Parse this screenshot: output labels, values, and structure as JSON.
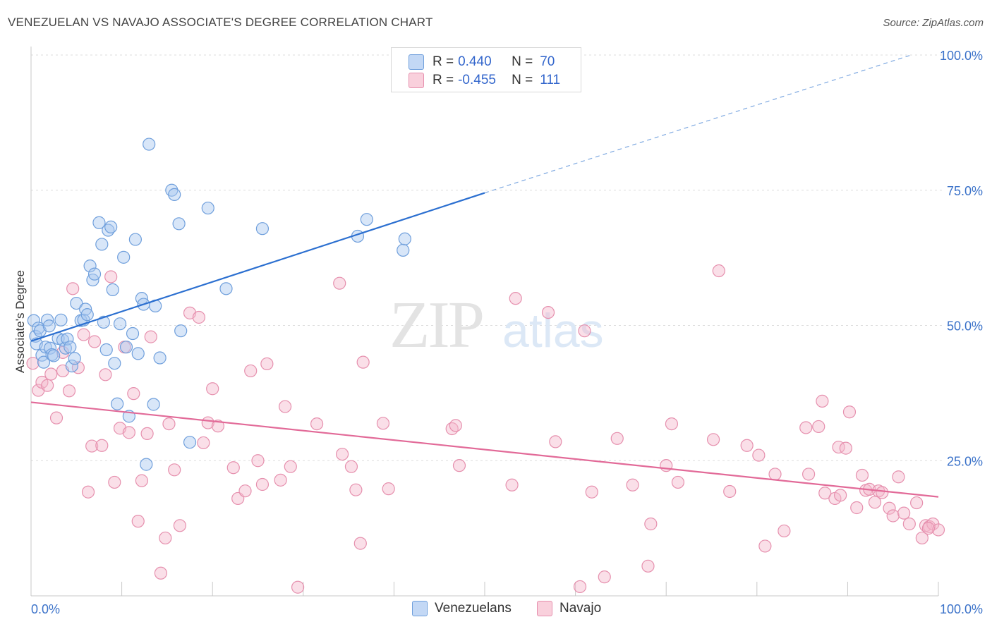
{
  "title": "VENEZUELAN VS NAVAJO ASSOCIATE'S DEGREE CORRELATION CHART",
  "source": "Source: ZipAtlas.com",
  "watermark": {
    "zip": "ZIP",
    "atlas": "atlas"
  },
  "legend": {
    "rows": [
      {
        "r_label": "R =",
        "r_value": "0.440",
        "n_label": "N =",
        "n_value": "70"
      },
      {
        "r_label": "R =",
        "r_value": "-0.455",
        "n_label": "N =",
        "n_value": "111"
      }
    ]
  },
  "bottom_legend": [
    "Venezuelans",
    "Navajo"
  ],
  "colors": {
    "blue_fill": "#a9c7f0",
    "blue_stroke": "#6f9fdc",
    "blue_line": "#2b6fd0",
    "pink_fill": "#f5b8cb",
    "pink_stroke": "#e690ae",
    "pink_line": "#e26a98",
    "tick_label": "#3b72c9",
    "grid": "#dddddd"
  },
  "chart_data": {
    "type": "scatter",
    "title": "VENEZUELAN VS NAVAJO ASSOCIATE'S DEGREE CORRELATION CHART",
    "xlabel": "",
    "ylabel": "Associate's Degree",
    "xlim": [
      0,
      100
    ],
    "ylim": [
      0,
      100
    ],
    "x_tick_labels": [
      "0.0%",
      "100.0%"
    ],
    "y_tick_labels": [
      "25.0%",
      "50.0%",
      "75.0%",
      "100.0%"
    ],
    "y_ticks": [
      25,
      50,
      75,
      100
    ],
    "grid": true,
    "legend_position": "top-center",
    "series": [
      {
        "name": "Venezuelans",
        "R": 0.44,
        "N": 70,
        "trend": {
          "x0": 0,
          "y0": 47.1,
          "x1": 50,
          "y1": 74.5,
          "dashed_to": {
            "x": 97,
            "y": 100
          }
        },
        "points": [
          [
            0.3,
            50.9
          ],
          [
            0.5,
            48.0
          ],
          [
            0.6,
            46.6
          ],
          [
            0.8,
            49.5
          ],
          [
            1.0,
            49.0
          ],
          [
            1.2,
            44.5
          ],
          [
            1.4,
            43.2
          ],
          [
            1.6,
            46.0
          ],
          [
            1.8,
            51.0
          ],
          [
            2.0,
            49.9
          ],
          [
            2.1,
            45.8
          ],
          [
            2.3,
            44.6
          ],
          [
            2.5,
            44.4
          ],
          [
            3.0,
            47.6
          ],
          [
            3.3,
            51.0
          ],
          [
            3.5,
            47.3
          ],
          [
            3.8,
            45.8
          ],
          [
            4.0,
            47.5
          ],
          [
            4.3,
            46.0
          ],
          [
            4.5,
            42.5
          ],
          [
            4.8,
            43.9
          ],
          [
            5.0,
            54.1
          ],
          [
            5.5,
            50.9
          ],
          [
            5.8,
            51.0
          ],
          [
            6.0,
            53.0
          ],
          [
            6.2,
            52.0
          ],
          [
            6.5,
            61.0
          ],
          [
            6.8,
            58.4
          ],
          [
            7.0,
            59.5
          ],
          [
            7.5,
            69.0
          ],
          [
            7.8,
            65.0
          ],
          [
            8.0,
            50.6
          ],
          [
            8.3,
            45.5
          ],
          [
            8.5,
            67.6
          ],
          [
            8.8,
            68.2
          ],
          [
            9.0,
            56.6
          ],
          [
            9.2,
            43.0
          ],
          [
            9.5,
            35.5
          ],
          [
            9.8,
            50.3
          ],
          [
            10.2,
            62.6
          ],
          [
            10.5,
            46.0
          ],
          [
            10.8,
            33.2
          ],
          [
            11.2,
            48.5
          ],
          [
            11.5,
            65.9
          ],
          [
            11.8,
            44.8
          ],
          [
            12.2,
            55.0
          ],
          [
            12.4,
            53.9
          ],
          [
            12.7,
            24.3
          ],
          [
            13.0,
            83.5
          ],
          [
            13.5,
            35.4
          ],
          [
            13.7,
            53.6
          ],
          [
            14.2,
            44.0
          ],
          [
            15.5,
            75.0
          ],
          [
            15.8,
            74.2
          ],
          [
            16.3,
            68.8
          ],
          [
            16.5,
            49.0
          ],
          [
            17.5,
            28.4
          ],
          [
            19.5,
            71.7
          ],
          [
            21.5,
            56.8
          ],
          [
            25.5,
            67.9
          ],
          [
            36.0,
            66.5
          ],
          [
            37.0,
            69.6
          ],
          [
            41.0,
            63.9
          ],
          [
            41.2,
            66.0
          ]
        ]
      },
      {
        "name": "Navajo",
        "R": -0.455,
        "N": 111,
        "trend": {
          "x0": 0,
          "y0": 35.8,
          "x1": 100,
          "y1": 18.3
        },
        "points": [
          [
            0.2,
            43.0
          ],
          [
            0.8,
            38.0
          ],
          [
            1.2,
            39.5
          ],
          [
            1.8,
            38.9
          ],
          [
            2.2,
            41.0
          ],
          [
            2.8,
            32.9
          ],
          [
            3.5,
            45.0
          ],
          [
            3.5,
            41.6
          ],
          [
            4.2,
            37.9
          ],
          [
            4.6,
            56.8
          ],
          [
            5.2,
            42.2
          ],
          [
            5.8,
            48.3
          ],
          [
            6.3,
            19.2
          ],
          [
            6.7,
            27.7
          ],
          [
            7.0,
            47.0
          ],
          [
            7.8,
            27.8
          ],
          [
            8.2,
            40.9
          ],
          [
            8.8,
            59.0
          ],
          [
            9.2,
            21.0
          ],
          [
            9.8,
            31.0
          ],
          [
            10.3,
            46.0
          ],
          [
            10.8,
            30.2
          ],
          [
            11.3,
            37.4
          ],
          [
            11.8,
            13.8
          ],
          [
            12.2,
            21.3
          ],
          [
            12.8,
            30.0
          ],
          [
            13.2,
            47.9
          ],
          [
            14.3,
            4.2
          ],
          [
            14.8,
            10.7
          ],
          [
            15.2,
            31.8
          ],
          [
            15.8,
            23.3
          ],
          [
            16.4,
            13.0
          ],
          [
            17.5,
            52.3
          ],
          [
            18.5,
            51.5
          ],
          [
            19.0,
            28.3
          ],
          [
            19.5,
            32.0
          ],
          [
            20.0,
            38.3
          ],
          [
            20.6,
            31.4
          ],
          [
            22.3,
            23.7
          ],
          [
            22.8,
            18.0
          ],
          [
            23.6,
            19.4
          ],
          [
            24.2,
            41.6
          ],
          [
            25.0,
            25.0
          ],
          [
            25.5,
            20.6
          ],
          [
            26.0,
            42.9
          ],
          [
            27.5,
            21.4
          ],
          [
            28.0,
            35.0
          ],
          [
            28.6,
            23.9
          ],
          [
            29.4,
            1.6
          ],
          [
            31.5,
            31.8
          ],
          [
            34.0,
            57.8
          ],
          [
            34.3,
            26.2
          ],
          [
            35.3,
            23.9
          ],
          [
            35.8,
            19.6
          ],
          [
            36.3,
            9.7
          ],
          [
            36.6,
            43.2
          ],
          [
            38.8,
            31.9
          ],
          [
            39.4,
            19.8
          ],
          [
            46.4,
            30.9
          ],
          [
            46.8,
            31.5
          ],
          [
            47.2,
            24.1
          ],
          [
            53.0,
            20.5
          ],
          [
            53.4,
            55.0
          ],
          [
            57.0,
            52.4
          ],
          [
            57.8,
            28.5
          ],
          [
            60.5,
            1.7
          ],
          [
            61.0,
            49.0
          ],
          [
            61.8,
            19.2
          ],
          [
            63.2,
            3.5
          ],
          [
            64.6,
            29.1
          ],
          [
            66.3,
            20.5
          ],
          [
            68.0,
            5.5
          ],
          [
            68.3,
            13.3
          ],
          [
            70.0,
            24.1
          ],
          [
            70.6,
            31.8
          ],
          [
            71.3,
            21.0
          ],
          [
            75.2,
            28.9
          ],
          [
            75.8,
            60.1
          ],
          [
            77.0,
            19.3
          ],
          [
            78.9,
            27.8
          ],
          [
            80.2,
            26.0
          ],
          [
            80.9,
            9.2
          ],
          [
            82.0,
            22.5
          ],
          [
            83.0,
            12.0
          ],
          [
            85.4,
            31.1
          ],
          [
            85.7,
            22.5
          ],
          [
            86.8,
            31.3
          ],
          [
            87.2,
            36.0
          ],
          [
            87.5,
            19.0
          ],
          [
            88.6,
            18.0
          ],
          [
            89.0,
            27.5
          ],
          [
            89.2,
            18.6
          ],
          [
            89.8,
            27.3
          ],
          [
            90.2,
            34.0
          ],
          [
            91.0,
            16.3
          ],
          [
            91.6,
            22.3
          ],
          [
            92.0,
            19.5
          ],
          [
            92.4,
            19.7
          ],
          [
            93.0,
            17.3
          ],
          [
            93.4,
            19.4
          ],
          [
            93.8,
            19.1
          ],
          [
            94.6,
            16.2
          ],
          [
            95.0,
            14.8
          ],
          [
            95.6,
            22.0
          ],
          [
            96.2,
            15.3
          ],
          [
            96.8,
            13.3
          ],
          [
            97.6,
            17.2
          ],
          [
            98.2,
            10.7
          ],
          [
            98.6,
            13.0
          ],
          [
            99.0,
            12.8
          ],
          [
            99.4,
            13.3
          ],
          [
            100.0,
            12.2
          ],
          [
            98.9,
            12.5
          ]
        ]
      }
    ]
  }
}
